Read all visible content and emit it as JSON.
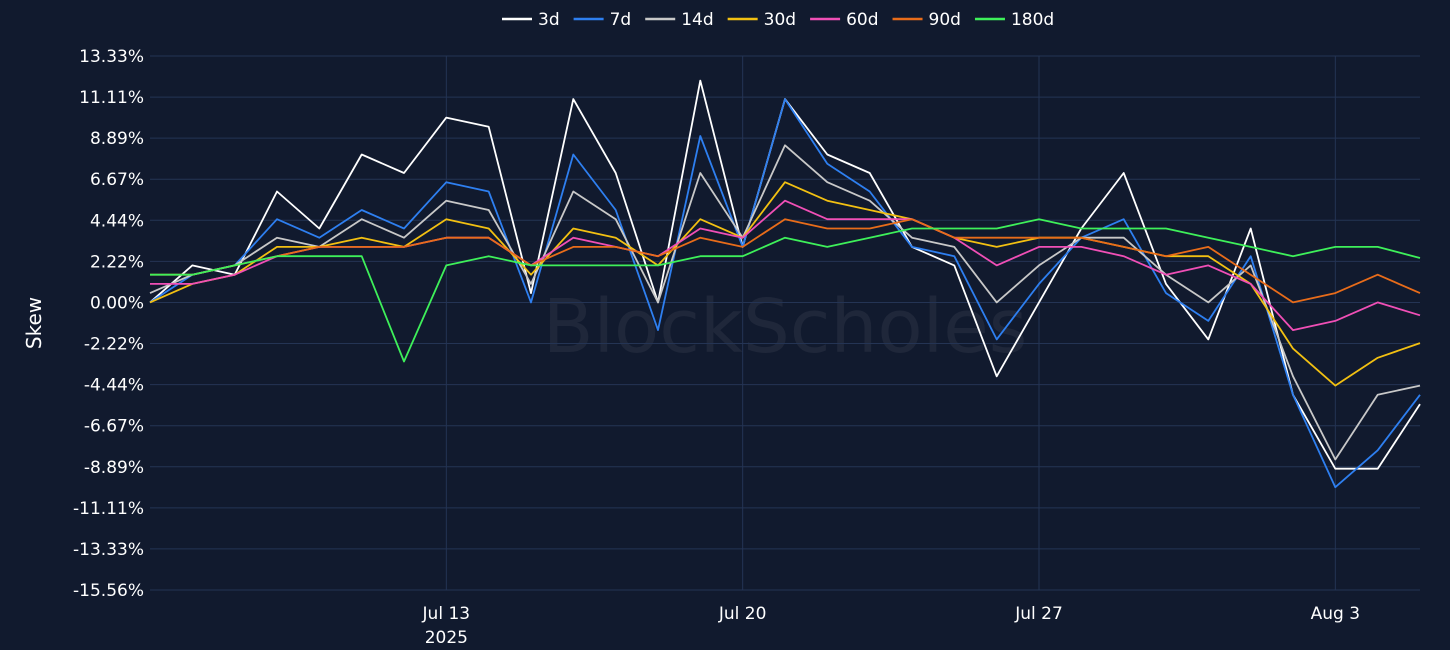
{
  "chart_data": {
    "type": "line",
    "title": "",
    "ylabel": "Skew",
    "xlabel": "",
    "ylim": [
      -15.56,
      13.33
    ],
    "y_ticks": [
      "13.33%",
      "11.11%",
      "8.89%",
      "6.67%",
      "4.44%",
      "2.22%",
      "0.00%",
      "-2.22%",
      "-4.44%",
      "-6.67%",
      "-8.89%",
      "-11.11%",
      "-13.33%",
      "-15.56%"
    ],
    "x_start": "2025-07-06T00:00",
    "x_end": "2025-08-05T00:00",
    "x_ticks": [
      {
        "date": "2025-07-13",
        "label": "Jul 13",
        "sublabel": "2025"
      },
      {
        "date": "2025-07-20",
        "label": "Jul 20",
        "sublabel": ""
      },
      {
        "date": "2025-07-27",
        "label": "Jul 27",
        "sublabel": ""
      },
      {
        "date": "2025-08-03",
        "label": "Aug 3",
        "sublabel": ""
      }
    ],
    "grid": true,
    "legend_position": "top-center",
    "watermark": "BlockScholes",
    "series": [
      {
        "name": "3d",
        "color": "#ffffff",
        "x": [
          "2025-07-06",
          "2025-07-07",
          "2025-07-08",
          "2025-07-09",
          "2025-07-10",
          "2025-07-11",
          "2025-07-12",
          "2025-07-13",
          "2025-07-14",
          "2025-07-15",
          "2025-07-16",
          "2025-07-17",
          "2025-07-18",
          "2025-07-19",
          "2025-07-20",
          "2025-07-21",
          "2025-07-22",
          "2025-07-23",
          "2025-07-24",
          "2025-07-25",
          "2025-07-26",
          "2025-07-27",
          "2025-07-28",
          "2025-07-29",
          "2025-07-30",
          "2025-07-31",
          "2025-08-01",
          "2025-08-02",
          "2025-08-03",
          "2025-08-04",
          "2025-08-05"
        ],
        "values": [
          0.0,
          2.0,
          1.5,
          6.0,
          4.0,
          8.0,
          7.0,
          10.0,
          9.5,
          0.5,
          11.0,
          7.0,
          0.0,
          12.0,
          3.0,
          11.0,
          8.0,
          7.0,
          3.0,
          2.0,
          -4.0,
          0.0,
          4.0,
          7.0,
          1.0,
          -2.0,
          4.0,
          -5.0,
          -9.0,
          -9.0,
          -5.5
        ]
      },
      {
        "name": "7d",
        "color": "#2e7ff0",
        "x": [
          "2025-07-06",
          "2025-07-07",
          "2025-07-08",
          "2025-07-09",
          "2025-07-10",
          "2025-07-11",
          "2025-07-12",
          "2025-07-13",
          "2025-07-14",
          "2025-07-15",
          "2025-07-16",
          "2025-07-17",
          "2025-07-18",
          "2025-07-19",
          "2025-07-20",
          "2025-07-21",
          "2025-07-22",
          "2025-07-23",
          "2025-07-24",
          "2025-07-25",
          "2025-07-26",
          "2025-07-27",
          "2025-07-28",
          "2025-07-29",
          "2025-07-30",
          "2025-07-31",
          "2025-08-01",
          "2025-08-02",
          "2025-08-03",
          "2025-08-04",
          "2025-08-05"
        ],
        "values": [
          0.0,
          1.5,
          2.0,
          4.5,
          3.5,
          5.0,
          4.0,
          6.5,
          6.0,
          0.0,
          8.0,
          5.0,
          -1.5,
          9.0,
          3.0,
          11.0,
          7.5,
          6.0,
          3.0,
          2.5,
          -2.0,
          1.0,
          3.5,
          4.5,
          0.5,
          -1.0,
          2.5,
          -5.0,
          -10.0,
          -8.0,
          -5.0
        ]
      },
      {
        "name": "14d",
        "color": "#c8c8c8",
        "x": [
          "2025-07-06",
          "2025-07-07",
          "2025-07-08",
          "2025-07-09",
          "2025-07-10",
          "2025-07-11",
          "2025-07-12",
          "2025-07-13",
          "2025-07-14",
          "2025-07-15",
          "2025-07-16",
          "2025-07-17",
          "2025-07-18",
          "2025-07-19",
          "2025-07-20",
          "2025-07-21",
          "2025-07-22",
          "2025-07-23",
          "2025-07-24",
          "2025-07-25",
          "2025-07-26",
          "2025-07-27",
          "2025-07-28",
          "2025-07-29",
          "2025-07-30",
          "2025-07-31",
          "2025-08-01",
          "2025-08-02",
          "2025-08-03",
          "2025-08-04",
          "2025-08-05"
        ],
        "values": [
          0.5,
          1.5,
          2.0,
          3.5,
          3.0,
          4.5,
          3.5,
          5.5,
          5.0,
          1.0,
          6.0,
          4.5,
          0.0,
          7.0,
          3.5,
          8.5,
          6.5,
          5.5,
          3.5,
          3.0,
          0.0,
          2.0,
          3.5,
          3.5,
          1.5,
          0.0,
          2.0,
          -4.0,
          -8.5,
          -5.0,
          -4.5
        ]
      },
      {
        "name": "30d",
        "color": "#f2c012",
        "x": [
          "2025-07-06",
          "2025-07-07",
          "2025-07-08",
          "2025-07-09",
          "2025-07-10",
          "2025-07-11",
          "2025-07-12",
          "2025-07-13",
          "2025-07-14",
          "2025-07-15",
          "2025-07-16",
          "2025-07-17",
          "2025-07-18",
          "2025-07-19",
          "2025-07-20",
          "2025-07-21",
          "2025-07-22",
          "2025-07-23",
          "2025-07-24",
          "2025-07-25",
          "2025-07-26",
          "2025-07-27",
          "2025-07-28",
          "2025-07-29",
          "2025-07-30",
          "2025-07-31",
          "2025-08-01",
          "2025-08-02",
          "2025-08-03",
          "2025-08-04",
          "2025-08-05"
        ],
        "values": [
          0.0,
          1.0,
          1.5,
          3.0,
          3.0,
          3.5,
          3.0,
          4.5,
          4.0,
          1.5,
          4.0,
          3.5,
          2.0,
          4.5,
          3.5,
          6.5,
          5.5,
          5.0,
          4.5,
          3.5,
          3.0,
          3.5,
          3.5,
          3.0,
          2.5,
          2.5,
          1.0,
          -2.5,
          -4.5,
          -3.0,
          -2.2
        ]
      },
      {
        "name": "60d",
        "color": "#f04fb6",
        "x": [
          "2025-07-06",
          "2025-07-07",
          "2025-07-08",
          "2025-07-09",
          "2025-07-10",
          "2025-07-11",
          "2025-07-12",
          "2025-07-13",
          "2025-07-14",
          "2025-07-15",
          "2025-07-16",
          "2025-07-17",
          "2025-07-18",
          "2025-07-19",
          "2025-07-20",
          "2025-07-21",
          "2025-07-22",
          "2025-07-23",
          "2025-07-24",
          "2025-07-25",
          "2025-07-26",
          "2025-07-27",
          "2025-07-28",
          "2025-07-29",
          "2025-07-30",
          "2025-07-31",
          "2025-08-01",
          "2025-08-02",
          "2025-08-03",
          "2025-08-04",
          "2025-08-05"
        ],
        "values": [
          1.0,
          1.0,
          1.5,
          2.5,
          3.0,
          3.0,
          3.0,
          3.5,
          3.5,
          2.0,
          3.5,
          3.0,
          2.5,
          4.0,
          3.5,
          5.5,
          4.5,
          4.5,
          4.5,
          3.5,
          2.0,
          3.0,
          3.0,
          2.5,
          1.5,
          2.0,
          1.0,
          -1.5,
          -1.0,
          0.0,
          -0.7
        ]
      },
      {
        "name": "90d",
        "color": "#e86c1a",
        "x": [
          "2025-07-06",
          "2025-07-07",
          "2025-07-08",
          "2025-07-09",
          "2025-07-10",
          "2025-07-11",
          "2025-07-12",
          "2025-07-13",
          "2025-07-14",
          "2025-07-15",
          "2025-07-16",
          "2025-07-17",
          "2025-07-18",
          "2025-07-19",
          "2025-07-20",
          "2025-07-21",
          "2025-07-22",
          "2025-07-23",
          "2025-07-24",
          "2025-07-25",
          "2025-07-26",
          "2025-07-27",
          "2025-07-28",
          "2025-07-29",
          "2025-07-30",
          "2025-07-31",
          "2025-08-01",
          "2025-08-02",
          "2025-08-03",
          "2025-08-04",
          "2025-08-05"
        ],
        "values": [
          1.5,
          1.5,
          2.0,
          2.5,
          3.0,
          3.0,
          3.0,
          3.5,
          3.5,
          2.0,
          3.0,
          3.0,
          2.5,
          3.5,
          3.0,
          4.5,
          4.0,
          4.0,
          4.5,
          3.5,
          3.5,
          3.5,
          3.5,
          3.0,
          2.5,
          3.0,
          1.5,
          0.0,
          0.5,
          1.5,
          0.5
        ]
      },
      {
        "name": "180d",
        "color": "#3ef05a",
        "x": [
          "2025-07-06",
          "2025-07-07",
          "2025-07-08",
          "2025-07-09",
          "2025-07-10",
          "2025-07-11",
          "2025-07-12",
          "2025-07-13",
          "2025-07-14",
          "2025-07-15",
          "2025-07-16",
          "2025-07-17",
          "2025-07-18",
          "2025-07-19",
          "2025-07-20",
          "2025-07-21",
          "2025-07-22",
          "2025-07-23",
          "2025-07-24",
          "2025-07-25",
          "2025-07-26",
          "2025-07-27",
          "2025-07-28",
          "2025-07-29",
          "2025-07-30",
          "2025-07-31",
          "2025-08-01",
          "2025-08-02",
          "2025-08-03",
          "2025-08-04",
          "2025-08-05"
        ],
        "values": [
          1.5,
          1.5,
          2.0,
          2.5,
          2.5,
          2.5,
          -3.2,
          2.0,
          2.5,
          2.0,
          2.0,
          2.0,
          2.0,
          2.5,
          2.5,
          3.5,
          3.0,
          3.5,
          4.0,
          4.0,
          4.0,
          4.5,
          4.0,
          4.0,
          4.0,
          3.5,
          3.0,
          2.5,
          3.0,
          3.0,
          2.4
        ]
      }
    ]
  }
}
